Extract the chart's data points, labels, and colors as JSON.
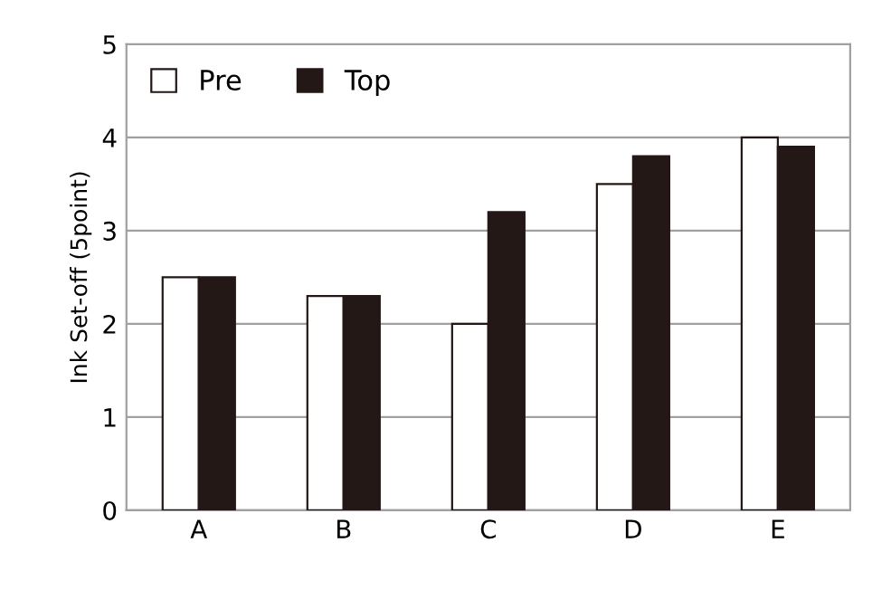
{
  "chart_data": {
    "type": "bar",
    "ylabel": "Ink Set-off (5point)",
    "categories": [
      "A",
      "B",
      "C",
      "D",
      "E"
    ],
    "series": [
      {
        "name": "Pre",
        "color": "#ffffff",
        "values": [
          2.5,
          2.3,
          2.0,
          3.5,
          4.0
        ]
      },
      {
        "name": "Top",
        "color": "#231815",
        "values": [
          2.5,
          2.3,
          3.2,
          3.8,
          3.9
        ]
      }
    ],
    "ylim": [
      0,
      5
    ],
    "yticks": [
      0,
      1,
      2,
      3,
      4,
      5
    ],
    "grid": "y",
    "legend": "top left"
  }
}
